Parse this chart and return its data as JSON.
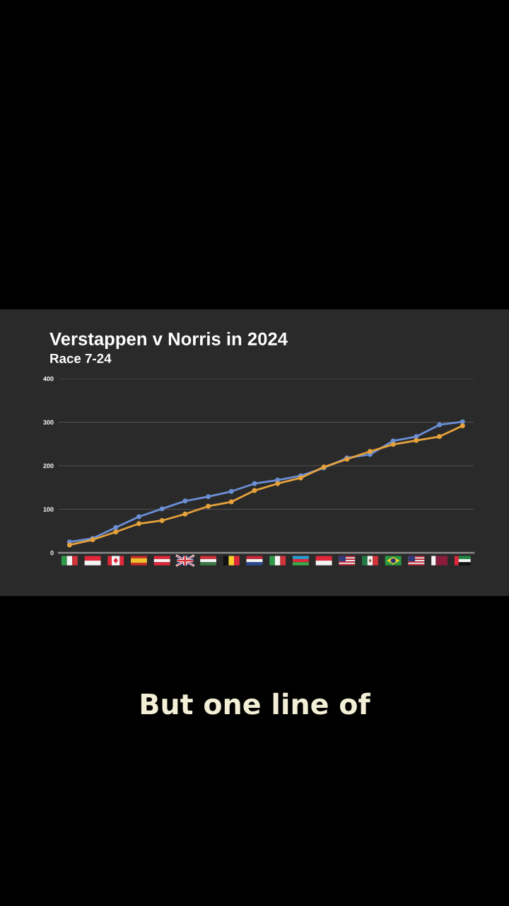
{
  "chart_data": {
    "type": "line",
    "title": "Verstappen v Norris in 2024",
    "subtitle": "Race 7-24",
    "annotations": [
      "But one line of"
    ],
    "categories": [
      null,
      null,
      null,
      null,
      null,
      null,
      null,
      null,
      null,
      null,
      null,
      null,
      null,
      null,
      null,
      null,
      null,
      null
    ],
    "series": [
      {
        "color": "#6b8fd6",
        "values": [
          25,
          33,
          58,
          83,
          101,
          119,
          129,
          141,
          159,
          167,
          177,
          195,
          218,
          226,
          257,
          267,
          294,
          301
        ]
      },
      {
        "color": "#e6a23c",
        "values": [
          18,
          30,
          48,
          67,
          74,
          89,
          107,
          117,
          143,
          159,
          172,
          197,
          215,
          233,
          249,
          258,
          267,
          292
        ]
      }
    ],
    "ylim": [
      0,
      400
    ],
    "yticks": [
      0,
      100,
      200,
      300,
      400
    ],
    "grid": "y",
    "marker": "circle",
    "line_style": "solid"
  }
}
